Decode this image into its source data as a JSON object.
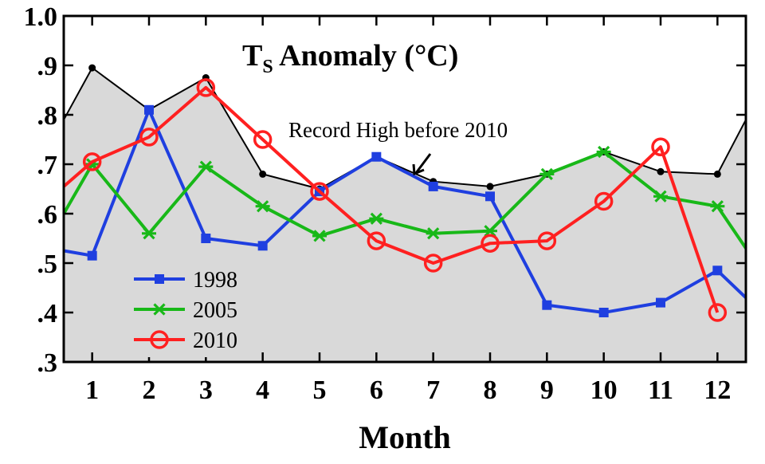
{
  "chart_data": {
    "type": "line",
    "title_main": "T",
    "title_sub": "S",
    "title_rest": " Anomaly (°C)",
    "xlabel": "Month",
    "ylabel": "",
    "x": [
      1,
      2,
      3,
      4,
      5,
      6,
      7,
      8,
      9,
      10,
      11,
      12
    ],
    "x_tick_labels": [
      "1",
      "2",
      "3",
      "4",
      "5",
      "6",
      "7",
      "8",
      "9",
      "10",
      "11",
      "12"
    ],
    "xlim": [
      0.5,
      12.5
    ],
    "ylim": [
      0.3,
      1.0
    ],
    "y_tick_labels": [
      "1.0",
      ".9",
      ".8",
      ".7",
      ".6",
      ".5",
      ".4",
      ".3"
    ],
    "y_tick_values": [
      1.0,
      0.9,
      0.8,
      0.7,
      0.6,
      0.5,
      0.4,
      0.3
    ],
    "record_high": {
      "values": [
        0.895,
        0.81,
        0.875,
        0.68,
        0.65,
        0.715,
        0.665,
        0.655,
        0.68,
        0.725,
        0.685,
        0.68
      ],
      "edge_left": 0.79,
      "edge_right": 0.79,
      "fill_color": "#d9d9d9",
      "line_color": "#000000"
    },
    "series": [
      {
        "name": "1998",
        "color": "#1f3fe0",
        "marker": "square",
        "values": [
          0.515,
          0.81,
          0.55,
          0.535,
          0.645,
          0.715,
          0.655,
          0.635,
          0.415,
          0.4,
          0.42,
          0.485
        ],
        "edge_left": 0.525,
        "edge_right": 0.43
      },
      {
        "name": "2005",
        "color": "#18b818",
        "marker": "asterisk",
        "values": [
          0.7,
          0.56,
          0.695,
          0.615,
          0.555,
          0.59,
          0.56,
          0.565,
          0.68,
          0.725,
          0.635,
          0.615
        ],
        "edge_left": 0.6,
        "edge_right": 0.53
      },
      {
        "name": "2010",
        "color": "#ff2020",
        "marker": "circle",
        "values": [
          0.705,
          0.755,
          0.855,
          0.75,
          0.645,
          0.545,
          0.5,
          0.54,
          0.545,
          0.625,
          0.735,
          0.4
        ],
        "edge_left": 0.655
      }
    ],
    "annotation": "Record High before 2010",
    "legend_position": "bottom-left",
    "grid": false
  }
}
